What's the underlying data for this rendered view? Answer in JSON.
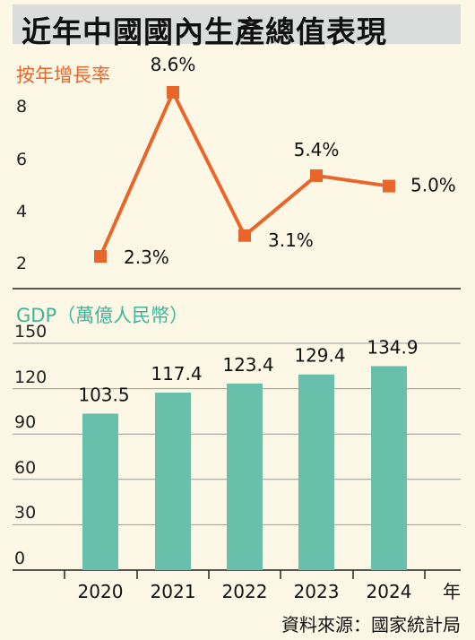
{
  "title": "近年中國國內生產總值表現",
  "source": "資料來源：國家統計局",
  "colors": {
    "line": "#e8662a",
    "bar": "#68c0aa",
    "background": "#fdf8e6",
    "title_bar": "#dbdddc"
  },
  "chart_data": [
    {
      "type": "line",
      "ylabel": "按年增長率",
      "x": [
        "2020",
        "2021",
        "2022",
        "2023",
        "2024"
      ],
      "values": [
        2.3,
        8.6,
        3.1,
        5.4,
        5.0
      ],
      "data_labels": [
        "2.3%",
        "8.6%",
        "3.1%",
        "5.4%",
        "5.0%"
      ],
      "yticks": [
        "2",
        "4",
        "6",
        "8"
      ],
      "ylim": [
        1.5,
        9.5
      ],
      "grid": false
    },
    {
      "type": "bar",
      "ylabel": "GDP（萬億人民幣）",
      "categories": [
        "2020",
        "2021",
        "2022",
        "2023",
        "2024"
      ],
      "values": [
        103.5,
        117.4,
        123.4,
        129.4,
        134.9
      ],
      "data_labels": [
        "103.5",
        "117.4",
        "123.4",
        "129.4",
        "134.9"
      ],
      "yticks": [
        "0",
        "30",
        "60",
        "90",
        "120",
        "150"
      ],
      "ylim": [
        0,
        150
      ],
      "xlabel": "年",
      "grid": true
    }
  ]
}
